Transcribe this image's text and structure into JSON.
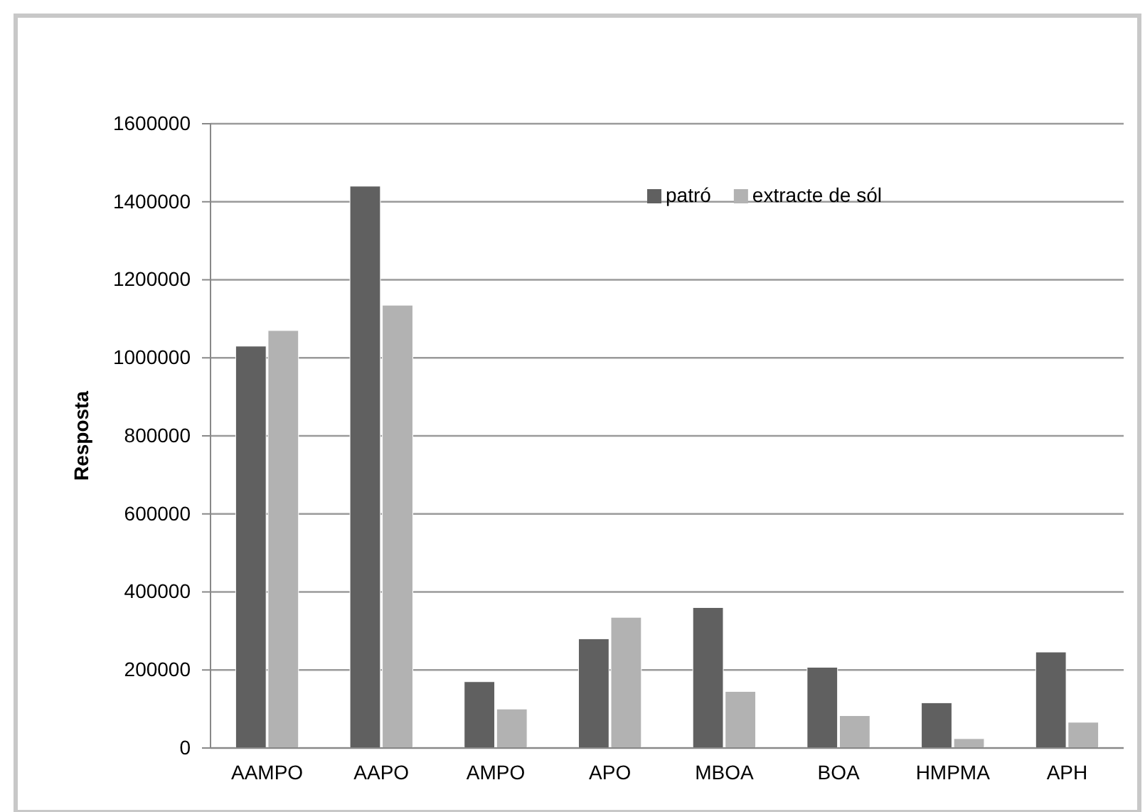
{
  "chart_data": {
    "type": "bar",
    "ylabel": "Resposta",
    "categories": [
      "AAMPO",
      "AAPO",
      "AMPO",
      "APO",
      "MBOA",
      "BOA",
      "HMPMA",
      "APH"
    ],
    "series": [
      {
        "name": "patró",
        "color": "#606060",
        "values": [
          1030000,
          1440000,
          170000,
          280000,
          360000,
          207000,
          116000,
          246000
        ]
      },
      {
        "name": "extracte de sól",
        "color": "#b2b2b2",
        "values": [
          1070000,
          1135000,
          100000,
          335000,
          145000,
          83000,
          24000,
          66000
        ]
      }
    ],
    "ylim": [
      0,
      1600000
    ],
    "yticks": [
      0,
      200000,
      400000,
      600000,
      800000,
      1000000,
      1200000,
      1400000,
      1600000
    ],
    "grid": "y",
    "legend": "top"
  }
}
